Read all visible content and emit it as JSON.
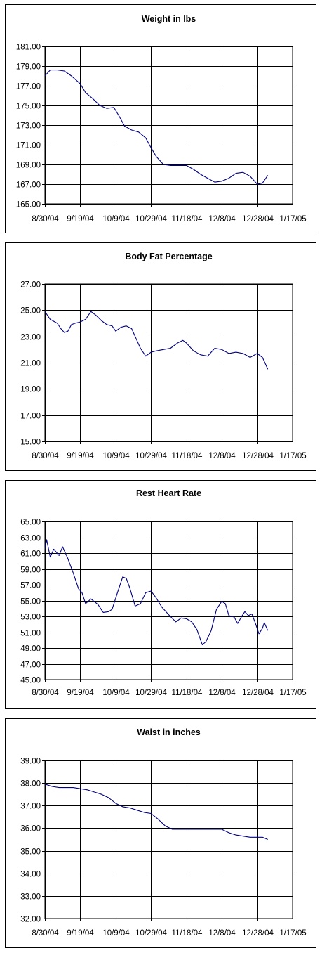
{
  "chart_data": [
    {
      "type": "line",
      "title": "Weight in lbs",
      "xlabel": "",
      "ylabel": "",
      "x_ticks": [
        "8/30/04",
        "9/19/04",
        "10/9/04",
        "10/29/04",
        "11/18/04",
        "12/8/04",
        "12/28/04",
        "1/17/05"
      ],
      "y_ticks": [
        "165.00",
        "167.00",
        "169.00",
        "171.00",
        "173.00",
        "175.00",
        "177.00",
        "179.00",
        "181.00"
      ],
      "xlim": [
        "8/30/04",
        "1/17/05"
      ],
      "ylim": [
        165,
        181
      ],
      "grid": true,
      "line_color": "#000080",
      "series": [
        {
          "x": [
            "8/30/04",
            "9/2/04",
            "9/6/04",
            "9/10/04",
            "9/14/04",
            "9/19/04",
            "9/22/04",
            "9/26/04",
            "9/30/04",
            "10/4/04",
            "10/8/04",
            "10/11/04",
            "10/14/04",
            "10/18/04",
            "10/22/04",
            "10/26/04",
            "10/29/04",
            "11/1/04",
            "11/5/04",
            "11/9/04",
            "11/13/04",
            "11/18/04",
            "11/22/04",
            "11/26/04",
            "11/30/04",
            "12/4/04",
            "12/8/04",
            "12/12/04",
            "12/16/04",
            "12/20/04",
            "12/24/04",
            "12/28/04",
            "12/31/04",
            "1/3/05"
          ],
          "values": [
            178.0,
            178.6,
            178.6,
            178.5,
            178.0,
            177.2,
            176.3,
            175.7,
            175.0,
            174.7,
            174.8,
            173.9,
            172.9,
            172.5,
            172.3,
            171.7,
            170.7,
            169.8,
            169.0,
            168.9,
            168.9,
            168.9,
            168.5,
            168.0,
            167.6,
            167.2,
            167.3,
            167.6,
            168.1,
            168.2,
            167.8,
            167.0,
            167.1,
            167.9
          ]
        }
      ]
    },
    {
      "type": "line",
      "title": "Body Fat Percentage",
      "xlabel": "",
      "ylabel": "",
      "x_ticks": [
        "8/30/04",
        "9/19/04",
        "10/9/04",
        "10/29/04",
        "11/18/04",
        "12/8/04",
        "12/28/04",
        "1/17/05"
      ],
      "y_ticks": [
        "15.00",
        "17.00",
        "19.00",
        "21.00",
        "23.00",
        "25.00",
        "27.00"
      ],
      "xlim": [
        "8/30/04",
        "1/17/05"
      ],
      "ylim": [
        15,
        27
      ],
      "grid": true,
      "line_color": "#000080",
      "series": [
        {
          "x": [
            "8/30/04",
            "9/2/04",
            "9/6/04",
            "9/8/04",
            "9/10/04",
            "9/12/04",
            "9/14/04",
            "9/16/04",
            "9/19/04",
            "9/22/04",
            "9/25/04",
            "9/28/04",
            "10/1/04",
            "10/4/04",
            "10/7/04",
            "10/9/04",
            "10/12/04",
            "10/15/04",
            "10/18/04",
            "10/20/04",
            "10/23/04",
            "10/26/04",
            "10/29/04",
            "11/1/04",
            "11/5/04",
            "11/9/04",
            "11/13/04",
            "11/16/04",
            "11/18/04",
            "11/22/04",
            "11/26/04",
            "11/30/04",
            "12/4/04",
            "12/8/04",
            "12/12/04",
            "12/16/04",
            "12/20/04",
            "12/24/04",
            "12/28/04",
            "12/31/04",
            "1/3/05"
          ],
          "values": [
            24.9,
            24.3,
            24.0,
            23.6,
            23.3,
            23.4,
            23.9,
            24.0,
            24.1,
            24.3,
            24.9,
            24.6,
            24.2,
            23.9,
            23.8,
            23.4,
            23.7,
            23.8,
            23.6,
            23.0,
            22.1,
            21.5,
            21.8,
            21.9,
            22.0,
            22.1,
            22.5,
            22.7,
            22.5,
            21.9,
            21.6,
            21.5,
            22.1,
            22.0,
            21.7,
            21.8,
            21.7,
            21.4,
            21.7,
            21.4,
            20.5
          ]
        }
      ]
    },
    {
      "type": "line",
      "title": "Rest Heart Rate",
      "xlabel": "",
      "ylabel": "",
      "x_ticks": [
        "8/30/04",
        "9/19/04",
        "10/9/04",
        "10/29/04",
        "11/18/04",
        "12/8/04",
        "12/28/04",
        "1/17/05"
      ],
      "y_ticks": [
        "45.00",
        "47.00",
        "49.00",
        "51.00",
        "53.00",
        "55.00",
        "57.00",
        "59.00",
        "61.00",
        "63.00",
        "65.00"
      ],
      "xlim": [
        "8/30/04",
        "1/17/05"
      ],
      "ylim": [
        45,
        65
      ],
      "grid": true,
      "line_color": "#000080",
      "series": [
        {
          "x": [
            "8/30/04",
            "8/31/04",
            "9/2/04",
            "9/4/04",
            "9/7/04",
            "9/9/04",
            "9/12/04",
            "9/15/04",
            "9/18/04",
            "9/20/04",
            "9/22/04",
            "9/25/04",
            "9/29/04",
            "10/2/04",
            "10/5/04",
            "10/7/04",
            "10/10/04",
            "10/13/04",
            "10/15/04",
            "10/17/04",
            "10/20/04",
            "10/23/04",
            "10/26/04",
            "10/29/04",
            "11/1/04",
            "11/4/04",
            "11/8/04",
            "11/12/04",
            "11/15/04",
            "11/18/04",
            "11/21/04",
            "11/24/04",
            "11/27/04",
            "11/29/04",
            "12/2/04",
            "12/5/04",
            "12/8/04",
            "12/10/04",
            "12/12/04",
            "12/15/04",
            "12/17/04",
            "12/19/04",
            "12/21/04",
            "12/23/04",
            "12/25/04",
            "12/27/04",
            "12/29/04",
            "12/31/04",
            "1/1/05",
            "1/3/05"
          ],
          "values": [
            61.5,
            62.7,
            60.5,
            61.5,
            60.7,
            61.8,
            60.3,
            58.5,
            56.5,
            56.0,
            54.6,
            55.2,
            54.5,
            53.5,
            53.6,
            53.9,
            56.0,
            58.0,
            57.8,
            56.6,
            54.3,
            54.6,
            56.0,
            56.2,
            55.3,
            54.2,
            53.2,
            52.3,
            52.8,
            52.7,
            52.3,
            51.3,
            49.4,
            49.8,
            51.2,
            53.9,
            54.9,
            54.6,
            53.1,
            52.9,
            52.1,
            52.9,
            53.6,
            53.1,
            53.3,
            52.1,
            50.8,
            51.5,
            52.2,
            51.2
          ]
        }
      ]
    },
    {
      "type": "line",
      "title": "Waist in inches",
      "xlabel": "",
      "ylabel": "",
      "x_ticks": [
        "8/30/04",
        "9/19/04",
        "10/9/04",
        "10/29/04",
        "11/18/04",
        "12/8/04",
        "12/28/04",
        "1/17/05"
      ],
      "y_ticks": [
        "32.00",
        "33.00",
        "34.00",
        "35.00",
        "36.00",
        "37.00",
        "38.00",
        "39.00"
      ],
      "xlim": [
        "8/30/04",
        "1/17/05"
      ],
      "ylim": [
        32,
        39
      ],
      "grid": true,
      "line_color": "#000080",
      "series": [
        {
          "x": [
            "8/30/04",
            "9/3/04",
            "9/7/04",
            "9/11/04",
            "9/15/04",
            "9/19/04",
            "9/23/04",
            "9/27/04",
            "10/1/04",
            "10/5/04",
            "10/9/04",
            "10/13/04",
            "10/17/04",
            "10/21/04",
            "10/25/04",
            "10/29/04",
            "11/2/04",
            "11/6/04",
            "11/10/04",
            "11/14/04",
            "11/18/04",
            "11/22/04",
            "11/26/04",
            "11/30/04",
            "12/4/04",
            "12/8/04",
            "12/12/04",
            "12/16/04",
            "12/20/04",
            "12/24/04",
            "12/28/04",
            "12/31/04",
            "1/3/05"
          ],
          "values": [
            37.95,
            37.85,
            37.8,
            37.8,
            37.8,
            37.75,
            37.7,
            37.6,
            37.5,
            37.35,
            37.1,
            36.95,
            36.9,
            36.8,
            36.7,
            36.65,
            36.4,
            36.1,
            35.95,
            35.95,
            35.95,
            35.95,
            35.95,
            35.95,
            35.95,
            35.95,
            35.8,
            35.7,
            35.65,
            35.6,
            35.6,
            35.6,
            35.5
          ]
        }
      ]
    }
  ]
}
